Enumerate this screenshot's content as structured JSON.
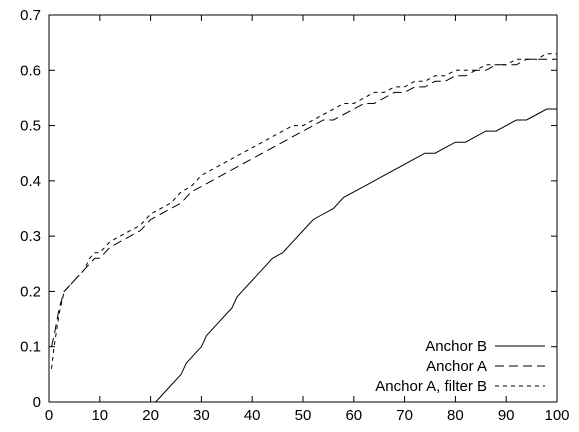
{
  "chart_data": {
    "type": "line",
    "title": "",
    "xlabel": "",
    "ylabel": "",
    "xlim": [
      0,
      100
    ],
    "ylim": [
      0,
      0.7
    ],
    "x_ticks": [
      0,
      10,
      20,
      30,
      40,
      50,
      60,
      70,
      80,
      90,
      100
    ],
    "y_ticks": [
      0,
      0.1,
      0.2,
      0.3,
      0.4,
      0.5,
      0.6,
      0.7
    ],
    "x_tick_labels": [
      "0",
      "10",
      "20",
      "30",
      "40",
      "50",
      "60",
      "70",
      "80",
      "90",
      "100"
    ],
    "y_tick_labels": [
      "0",
      "0.1",
      "0.2",
      "0.3",
      "0.4",
      "0.5",
      "0.6",
      "0.7"
    ],
    "grid": false,
    "legend_position": "bottom-right",
    "series": [
      {
        "name": "Anchor B",
        "dash": "solid",
        "color": "#000000",
        "x": [
          21,
          24,
          26,
          27,
          29,
          30,
          31,
          33,
          35,
          36,
          37,
          38,
          40,
          42,
          44,
          46,
          48,
          50,
          52,
          54,
          56,
          58,
          60,
          62,
          64,
          66,
          68,
          70,
          72,
          74,
          76,
          78,
          80,
          82,
          84,
          86,
          88,
          90,
          92,
          94,
          96,
          98,
          100
        ],
        "y": [
          0,
          0.03,
          0.05,
          0.07,
          0.09,
          0.1,
          0.12,
          0.14,
          0.16,
          0.17,
          0.19,
          0.2,
          0.22,
          0.24,
          0.26,
          0.27,
          0.29,
          0.31,
          0.33,
          0.34,
          0.35,
          0.37,
          0.38,
          0.39,
          0.4,
          0.41,
          0.42,
          0.43,
          0.44,
          0.45,
          0.45,
          0.46,
          0.47,
          0.47,
          0.48,
          0.49,
          0.49,
          0.5,
          0.51,
          0.51,
          0.52,
          0.53,
          0.53
        ]
      },
      {
        "name": "Anchor A",
        "dash": "long",
        "color": "#000000",
        "x": [
          0.5,
          1,
          2,
          3,
          4,
          5,
          6,
          7,
          8,
          9,
          10,
          12,
          14,
          16,
          18,
          20,
          22,
          24,
          26,
          28,
          30,
          32,
          34,
          36,
          38,
          40,
          42,
          44,
          46,
          48,
          50,
          52,
          54,
          56,
          58,
          60,
          62,
          64,
          66,
          68,
          70,
          72,
          74,
          76,
          78,
          80,
          82,
          84,
          86,
          88,
          90,
          92,
          94,
          96,
          98,
          100
        ],
        "y": [
          0.1,
          0.12,
          0.17,
          0.2,
          0.21,
          0.22,
          0.23,
          0.24,
          0.25,
          0.26,
          0.26,
          0.28,
          0.29,
          0.3,
          0.31,
          0.33,
          0.34,
          0.35,
          0.36,
          0.38,
          0.39,
          0.4,
          0.41,
          0.42,
          0.43,
          0.44,
          0.45,
          0.46,
          0.47,
          0.48,
          0.49,
          0.5,
          0.51,
          0.51,
          0.52,
          0.53,
          0.54,
          0.54,
          0.55,
          0.56,
          0.56,
          0.57,
          0.57,
          0.58,
          0.58,
          0.59,
          0.59,
          0.6,
          0.6,
          0.61,
          0.61,
          0.61,
          0.62,
          0.62,
          0.62,
          0.62
        ]
      },
      {
        "name": "Anchor A, filter B",
        "dash": "short",
        "color": "#000000",
        "x": [
          0.5,
          1,
          2,
          3,
          4,
          5,
          6,
          7,
          8,
          9,
          10,
          12,
          14,
          16,
          18,
          20,
          22,
          24,
          26,
          28,
          30,
          32,
          34,
          36,
          38,
          40,
          42,
          44,
          46,
          48,
          50,
          52,
          54,
          56,
          58,
          60,
          62,
          64,
          66,
          68,
          70,
          72,
          74,
          76,
          78,
          80,
          82,
          84,
          86,
          88,
          90,
          92,
          94,
          96,
          98,
          100
        ],
        "y": [
          0.06,
          0.1,
          0.16,
          0.2,
          0.21,
          0.22,
          0.23,
          0.24,
          0.26,
          0.27,
          0.27,
          0.29,
          0.3,
          0.31,
          0.32,
          0.34,
          0.35,
          0.36,
          0.38,
          0.39,
          0.41,
          0.42,
          0.43,
          0.44,
          0.45,
          0.46,
          0.47,
          0.48,
          0.49,
          0.5,
          0.5,
          0.51,
          0.52,
          0.53,
          0.54,
          0.54,
          0.55,
          0.56,
          0.56,
          0.57,
          0.57,
          0.58,
          0.58,
          0.59,
          0.59,
          0.6,
          0.6,
          0.6,
          0.61,
          0.61,
          0.61,
          0.62,
          0.62,
          0.62,
          0.63,
          0.63
        ]
      }
    ]
  }
}
